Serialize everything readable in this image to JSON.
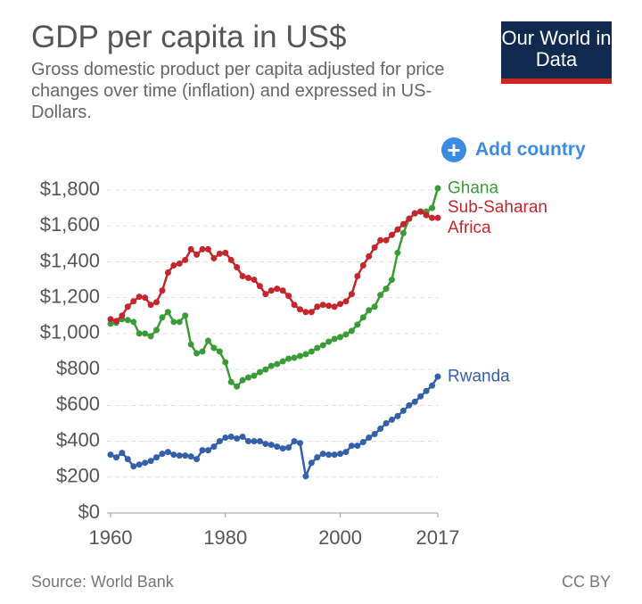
{
  "chart_data": {
    "type": "line",
    "title": "GDP per capita in US$",
    "subtitle": "Gross domestic product per capita adjusted for price changes over time (inflation) and expressed in US-Dollars.",
    "logo": "Our World in Data",
    "button": "Add country",
    "source": "Source: World Bank",
    "license": "CC BY",
    "x": [
      1960,
      1961,
      1962,
      1963,
      1964,
      1965,
      1966,
      1967,
      1968,
      1969,
      1970,
      1971,
      1972,
      1973,
      1974,
      1975,
      1976,
      1977,
      1978,
      1979,
      1980,
      1981,
      1982,
      1983,
      1984,
      1985,
      1986,
      1987,
      1988,
      1989,
      1990,
      1991,
      1992,
      1993,
      1994,
      1995,
      1996,
      1997,
      1998,
      1999,
      2000,
      2001,
      2002,
      2003,
      2004,
      2005,
      2006,
      2007,
      2008,
      2009,
      2010,
      2011,
      2012,
      2013,
      2014,
      2015,
      2016,
      2017
    ],
    "xlim": [
      1960,
      2017
    ],
    "xticks": [
      1960,
      1980,
      2000,
      2017
    ],
    "ylim": [
      0,
      1800
    ],
    "yticks": [
      {
        "value": 0,
        "label": "$0"
      },
      {
        "value": 200,
        "label": "$200"
      },
      {
        "value": 400,
        "label": "$400"
      },
      {
        "value": 600,
        "label": "$600"
      },
      {
        "value": 800,
        "label": "$800"
      },
      {
        "value": 1000,
        "label": "$1,000"
      },
      {
        "value": 1200,
        "label": "$1,200"
      },
      {
        "value": 1400,
        "label": "$1,400"
      },
      {
        "value": 1600,
        "label": "$1,600"
      },
      {
        "value": 1800,
        "label": "$1,800"
      }
    ],
    "grid": true,
    "series": [
      {
        "name": "Ghana",
        "color": "#3a9b37",
        "values": [
          1055,
          1060,
          1080,
          1075,
          1065,
          1000,
          1000,
          985,
          1020,
          1090,
          1120,
          1065,
          1065,
          1100,
          940,
          890,
          900,
          960,
          920,
          900,
          840,
          730,
          705,
          740,
          755,
          765,
          785,
          800,
          820,
          830,
          845,
          860,
          865,
          875,
          885,
          900,
          920,
          935,
          955,
          970,
          980,
          995,
          1015,
          1050,
          1090,
          1130,
          1150,
          1215,
          1250,
          1300,
          1450,
          1560,
          1640,
          1670,
          1680,
          1680,
          1700,
          1810
        ]
      },
      {
        "name": "Sub-Saharan Africa",
        "color": "#c3262d",
        "values": [
          1080,
          1070,
          1100,
          1150,
          1180,
          1205,
          1200,
          1160,
          1175,
          1240,
          1340,
          1380,
          1390,
          1410,
          1470,
          1440,
          1470,
          1470,
          1420,
          1445,
          1450,
          1410,
          1370,
          1320,
          1310,
          1300,
          1265,
          1220,
          1240,
          1250,
          1240,
          1210,
          1160,
          1135,
          1120,
          1120,
          1150,
          1160,
          1155,
          1150,
          1165,
          1180,
          1220,
          1320,
          1380,
          1430,
          1480,
          1520,
          1520,
          1550,
          1580,
          1610,
          1640,
          1670,
          1680,
          1660,
          1645,
          1645
        ]
      },
      {
        "name": "Rwanda",
        "color": "#3360a9",
        "values": [
          325,
          310,
          335,
          300,
          260,
          270,
          280,
          290,
          310,
          330,
          340,
          325,
          320,
          320,
          315,
          300,
          350,
          350,
          370,
          400,
          420,
          425,
          415,
          425,
          400,
          400,
          400,
          385,
          380,
          370,
          360,
          365,
          400,
          390,
          205,
          280,
          310,
          330,
          325,
          325,
          330,
          340,
          375,
          375,
          395,
          420,
          440,
          470,
          500,
          520,
          540,
          570,
          600,
          620,
          650,
          680,
          710,
          760
        ]
      }
    ]
  }
}
